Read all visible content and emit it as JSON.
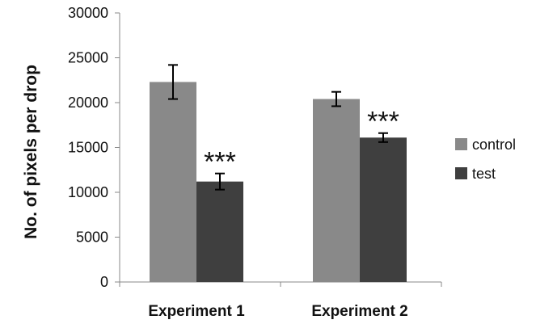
{
  "chart_data": {
    "type": "bar",
    "title": "",
    "xlabel": "",
    "ylabel": "No. of pixels per drop",
    "ylim": [
      0,
      30000
    ],
    "yticks": [
      0,
      5000,
      10000,
      15000,
      20000,
      25000,
      30000
    ],
    "categories": [
      "Experiment 1",
      "Experiment 2"
    ],
    "series": [
      {
        "name": "control",
        "color": "#898989",
        "values": [
          22300,
          20400
        ],
        "errors": [
          1900,
          800
        ]
      },
      {
        "name": "test",
        "color": "#3f3f3f",
        "values": [
          11200,
          16100
        ],
        "errors": [
          900,
          500
        ]
      }
    ],
    "annotations": [
      {
        "text": "***",
        "category": "Experiment 1",
        "series": "test"
      },
      {
        "text": "***",
        "category": "Experiment 2",
        "series": "test"
      }
    ],
    "legend": {
      "position": "right"
    },
    "grid": false
  }
}
